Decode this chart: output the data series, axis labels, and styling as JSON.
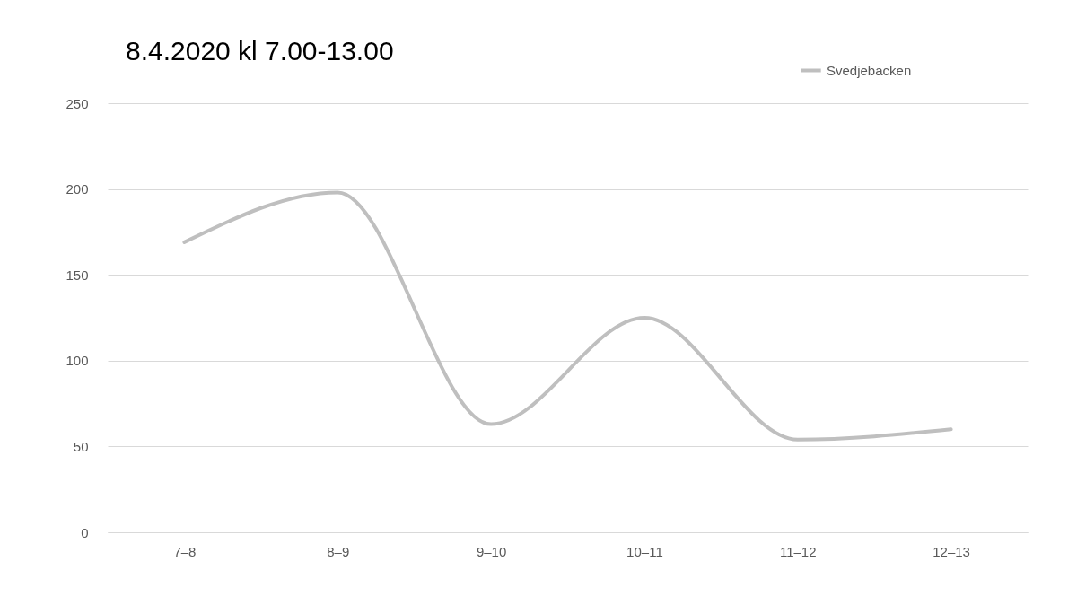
{
  "chart_data": {
    "type": "line",
    "title": "8.4.2020 kl 7.00-13.00",
    "categories": [
      "7–8",
      "8–9",
      "9–10",
      "10–11",
      "11–12",
      "12–13"
    ],
    "series": [
      {
        "name": "Svedjebacken",
        "color": "#bfbfbf",
        "values": [
          169,
          198,
          63,
          125,
          54,
          60
        ]
      }
    ],
    "ylim": [
      0,
      250
    ],
    "yticks": [
      0,
      50,
      100,
      150,
      200,
      250
    ],
    "grid": "y",
    "legend": "top right",
    "marker": "none",
    "line_style": "solid"
  }
}
